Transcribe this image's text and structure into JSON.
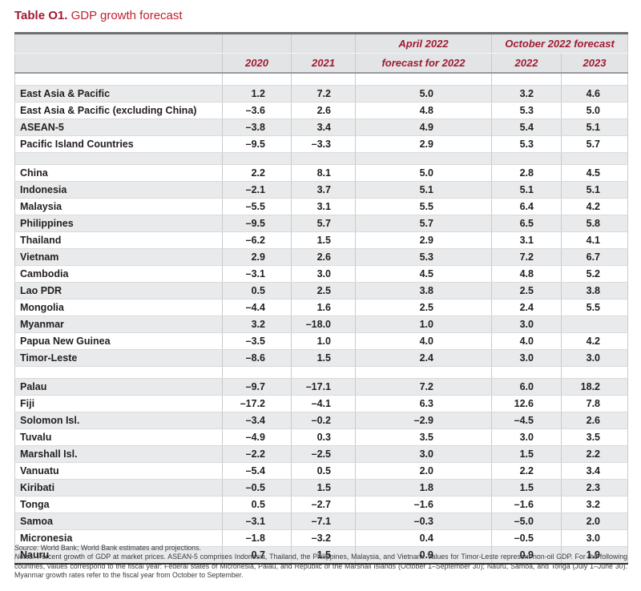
{
  "title": {
    "prefix": "Table O1.",
    "text": "GDP growth forecast"
  },
  "header": {
    "col_2020": "2020",
    "col_2021": "2021",
    "april_line1": "April 2022",
    "april_line2": "forecast for 2022",
    "october_group": "October 2022 forecast",
    "october_2022": "2022",
    "october_2023": "2023"
  },
  "table_rows": [
    {
      "type": "spacer"
    },
    {
      "type": "data",
      "label": "East Asia & Pacific",
      "values": [
        "1.2",
        "7.2",
        "5.0",
        "3.2",
        "4.6"
      ]
    },
    {
      "type": "data",
      "label": "East Asia & Pacific (excluding China)",
      "values": [
        "–3.6",
        "2.6",
        "4.8",
        "5.3",
        "5.0"
      ]
    },
    {
      "type": "data",
      "label": "ASEAN-5",
      "values": [
        "–3.8",
        "3.4",
        "4.9",
        "5.4",
        "5.1"
      ]
    },
    {
      "type": "data",
      "label": "Pacific Island Countries",
      "values": [
        "–9.5",
        "–3.3",
        "2.9",
        "5.3",
        "5.7"
      ]
    },
    {
      "type": "spacer"
    },
    {
      "type": "data",
      "label": "China",
      "values": [
        "2.2",
        "8.1",
        "5.0",
        "2.8",
        "4.5"
      ]
    },
    {
      "type": "data",
      "label": "Indonesia",
      "values": [
        "–2.1",
        "3.7",
        "5.1",
        "5.1",
        "5.1"
      ]
    },
    {
      "type": "data",
      "label": "Malaysia",
      "values": [
        "–5.5",
        "3.1",
        "5.5",
        "6.4",
        "4.2"
      ]
    },
    {
      "type": "data",
      "label": "Philippines",
      "values": [
        "–9.5",
        "5.7",
        "5.7",
        "6.5",
        "5.8"
      ]
    },
    {
      "type": "data",
      "label": "Thailand",
      "values": [
        "–6.2",
        "1.5",
        "2.9",
        "3.1",
        "4.1"
      ]
    },
    {
      "type": "data",
      "label": "Vietnam",
      "values": [
        "2.9",
        "2.6",
        "5.3",
        "7.2",
        "6.7"
      ]
    },
    {
      "type": "data",
      "label": "Cambodia",
      "values": [
        "–3.1",
        "3.0",
        "4.5",
        "4.8",
        "5.2"
      ]
    },
    {
      "type": "data",
      "label": "Lao PDR",
      "values": [
        "0.5",
        "2.5",
        "3.8",
        "2.5",
        "3.8"
      ]
    },
    {
      "type": "data",
      "label": "Mongolia",
      "values": [
        "–4.4",
        "1.6",
        "2.5",
        "2.4",
        "5.5"
      ]
    },
    {
      "type": "data",
      "label": "Myanmar",
      "values": [
        "3.2",
        "–18.0",
        "1.0",
        "3.0",
        ""
      ]
    },
    {
      "type": "data",
      "label": "Papua New Guinea",
      "values": [
        "–3.5",
        "1.0",
        "4.0",
        "4.0",
        "4.2"
      ]
    },
    {
      "type": "data",
      "label": "Timor-Leste",
      "values": [
        "–8.6",
        "1.5",
        "2.4",
        "3.0",
        "3.0"
      ]
    },
    {
      "type": "spacer"
    },
    {
      "type": "data",
      "label": "Palau",
      "values": [
        "–9.7",
        "–17.1",
        "7.2",
        "6.0",
        "18.2"
      ]
    },
    {
      "type": "data",
      "label": "Fiji",
      "values": [
        "–17.2",
        "–4.1",
        "6.3",
        "12.6",
        "7.8"
      ]
    },
    {
      "type": "data",
      "label": "Solomon Isl.",
      "values": [
        "–3.4",
        "–0.2",
        "–2.9",
        "–4.5",
        "2.6"
      ]
    },
    {
      "type": "data",
      "label": "Tuvalu",
      "values": [
        "–4.9",
        "0.3",
        "3.5",
        "3.0",
        "3.5"
      ]
    },
    {
      "type": "data",
      "label": "Marshall Isl.",
      "values": [
        "–2.2",
        "–2.5",
        "3.0",
        "1.5",
        "2.2"
      ]
    },
    {
      "type": "data",
      "label": "Vanuatu",
      "values": [
        "–5.4",
        "0.5",
        "2.0",
        "2.2",
        "3.4"
      ]
    },
    {
      "type": "data",
      "label": "Kiribati",
      "values": [
        "–0.5",
        "1.5",
        "1.8",
        "1.5",
        "2.3"
      ]
    },
    {
      "type": "data",
      "label": "Tonga",
      "values": [
        "0.5",
        "–2.7",
        "–1.6",
        "–1.6",
        "3.2"
      ]
    },
    {
      "type": "data",
      "label": "Samoa",
      "values": [
        "–3.1",
        "–7.1",
        "–0.3",
        "–5.0",
        "2.0"
      ]
    },
    {
      "type": "data",
      "label": "Micronesia",
      "values": [
        "–1.8",
        "–3.2",
        "0.4",
        "–0.5",
        "3.0"
      ]
    },
    {
      "type": "data",
      "label": "Nauru",
      "values": [
        "0.7",
        "1.5",
        "0.9",
        "0.9",
        "1.9"
      ]
    }
  ],
  "footnotes": {
    "source_label": "Source:",
    "source_text": " World Bank; World Bank estimates and projections.",
    "notes_label": "Notes:",
    "notes_text": " Percent growth of GDP at market prices. ASEAN-5 comprises Indonesia, Thailand, the Philippines, Malaysia, and Vietnam. Values for Timor-Leste represent non-oil GDP. For the following countries, values correspond to the fiscal year: Federal states of Micronesia, Palau, and Republic of the Marshall Islands (October 1–September 30); Nauru, Samoa, and Tonga (July 1–June 30). Myanmar growth rates refer to the fiscal year from October to September."
  },
  "colors": {
    "title_prefix_red": "#a01a31",
    "title_text_red": "#c1202f",
    "header_text_red": "#9e1b32",
    "header_bg": "#e3e4e6",
    "stripe_gray": "#e9eaeb",
    "body_text": "#232021"
  }
}
